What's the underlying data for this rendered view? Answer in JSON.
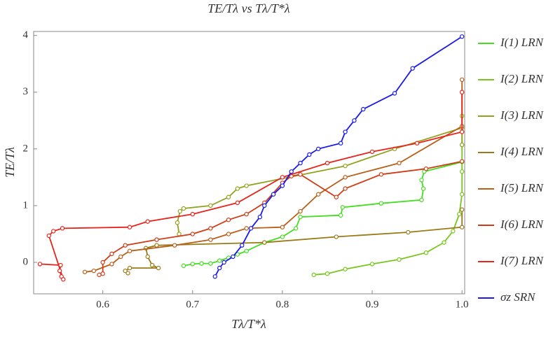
{
  "chart_data": {
    "type": "line",
    "title": "TE/Tλ vs Tλ/T*λ",
    "x_label": "Tλ/T*λ",
    "y_label": "TE/Tλ",
    "xlim": [
      0.523,
      1.003
    ],
    "ylim": [
      -0.555,
      4.07
    ],
    "xticks": [
      0.6,
      0.7,
      0.8,
      0.9,
      {
        "value": 1.0,
        "label": "1.0"
      }
    ],
    "yticks": [
      0,
      1,
      2,
      3,
      4
    ],
    "series": [
      {
        "name": "I(1) LRN",
        "color": "#44dd22",
        "x": [
          0.69,
          0.7,
          0.71,
          0.72,
          0.73,
          0.74,
          0.75,
          0.76,
          0.78,
          0.8,
          0.815,
          0.82,
          0.865,
          0.867,
          0.91,
          0.955,
          0.957,
          0.955,
          0.958,
          1.0
        ],
        "values": [
          -0.06,
          -0.03,
          -0.02,
          -0.02,
          0.03,
          0.08,
          0.14,
          0.2,
          0.35,
          0.45,
          0.6,
          0.8,
          0.83,
          0.97,
          1.04,
          1.1,
          1.3,
          1.45,
          1.6,
          1.77
        ]
      },
      {
        "name": "I(2) LRN",
        "color": "#77c61c",
        "x": [
          0.835,
          0.85,
          0.87,
          0.9,
          0.93,
          0.96,
          0.98,
          0.99,
          0.997,
          1.0,
          1.0,
          1.0,
          1.0
        ],
        "values": [
          -0.22,
          -0.2,
          -0.12,
          -0.03,
          0.05,
          0.17,
          0.35,
          0.55,
          0.85,
          1.2,
          1.6,
          2.07,
          2.58
        ]
      },
      {
        "name": "I(3) LRN",
        "color": "#92a21e",
        "x": [
          0.685,
          0.683,
          0.686,
          0.69,
          0.72,
          0.74,
          0.75,
          0.76,
          0.87,
          0.925,
          1.0,
          1.0
        ],
        "values": [
          0.5,
          0.7,
          0.9,
          0.95,
          1.0,
          1.15,
          1.3,
          1.35,
          1.7,
          2.0,
          2.37,
          2.07
        ]
      },
      {
        "name": "I(4) LRN",
        "color": "#9a7a16",
        "x": [
          0.628,
          0.625,
          0.63,
          0.662,
          0.655,
          0.65,
          0.648,
          0.66,
          0.78,
          0.86,
          0.94,
          1.0,
          1.0
        ],
        "values": [
          -0.19,
          -0.15,
          -0.1,
          -0.1,
          -0.05,
          0.1,
          0.25,
          0.3,
          0.35,
          0.45,
          0.53,
          0.62,
          0.93
        ]
      },
      {
        "name": "I(5) LRN",
        "color": "#b95f19",
        "x": [
          0.58,
          0.59,
          0.61,
          0.62,
          0.63,
          0.68,
          0.72,
          0.74,
          0.76,
          0.8,
          0.82,
          0.84,
          0.87,
          0.93,
          1.0,
          1.0
        ],
        "values": [
          -0.17,
          -0.15,
          -0.03,
          0.1,
          0.2,
          0.3,
          0.4,
          0.5,
          0.6,
          0.62,
          0.9,
          1.2,
          1.5,
          1.75,
          2.4,
          3.22
        ]
      },
      {
        "name": "I(6) LRN",
        "color": "#d03c16",
        "x": [
          0.596,
          0.6,
          0.6,
          0.61,
          0.625,
          0.66,
          0.7,
          0.72,
          0.74,
          0.76,
          0.78,
          0.8,
          0.81,
          0.82,
          0.86,
          0.87,
          0.91,
          0.96,
          1.0
        ],
        "values": [
          -0.22,
          -0.2,
          0.0,
          0.15,
          0.3,
          0.4,
          0.5,
          0.6,
          0.75,
          0.85,
          1.05,
          1.4,
          1.52,
          1.55,
          1.15,
          1.3,
          1.55,
          1.65,
          1.78
        ]
      },
      {
        "name": "I(7) LRN",
        "color": "#e8231a",
        "x": [
          0.53,
          0.553,
          0.552,
          0.554,
          0.556,
          0.54,
          0.545,
          0.555,
          0.63,
          0.65,
          0.7,
          0.75,
          0.8,
          0.85,
          0.9,
          0.95,
          1.0,
          1.0
        ],
        "values": [
          -0.03,
          -0.05,
          -0.15,
          -0.25,
          -0.3,
          0.47,
          0.55,
          0.6,
          0.62,
          0.72,
          0.85,
          1.05,
          1.5,
          1.75,
          1.95,
          2.1,
          2.3,
          3.0
        ]
      },
      {
        "name": "σz SRN",
        "color": "#1a1aee",
        "x": [
          0.725,
          0.73,
          0.735,
          0.745,
          0.755,
          0.765,
          0.775,
          0.78,
          0.79,
          0.8,
          0.81,
          0.82,
          0.83,
          0.84,
          0.865,
          0.87,
          0.88,
          0.89,
          0.925,
          0.945,
          1.0
        ],
        "values": [
          -0.25,
          -0.1,
          0.0,
          0.1,
          0.3,
          0.6,
          0.8,
          1.0,
          1.2,
          1.35,
          1.6,
          1.75,
          1.9,
          2.0,
          2.1,
          2.3,
          2.5,
          2.7,
          2.98,
          3.42,
          3.98
        ]
      }
    ]
  }
}
